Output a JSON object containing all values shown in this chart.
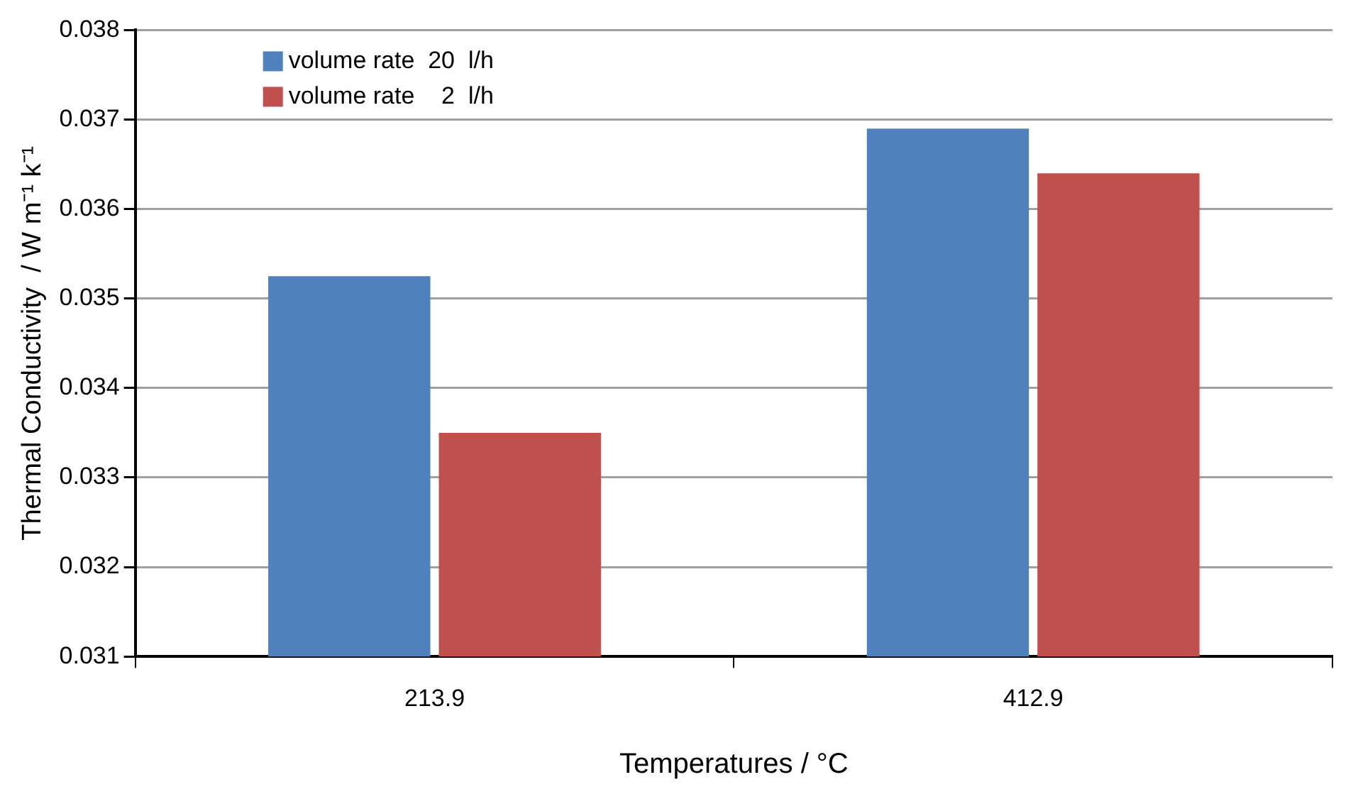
{
  "chart_data": {
    "type": "bar",
    "xlabel": "Temperatures / °C",
    "ylabel": "Thermal Conductivity  / W m⁻¹ k⁻¹",
    "categories": [
      "213.9",
      "412.9"
    ],
    "series": [
      {
        "name": "volume rate  20  l/h",
        "color": "#4f81bd",
        "values": [
          0.03525,
          0.0369
        ]
      },
      {
        "name": "volume rate    2  l/h",
        "color": "#c0504d",
        "values": [
          0.0335,
          0.0364
        ]
      }
    ],
    "ylim": [
      0.031,
      0.038
    ],
    "yticks": [
      0.031,
      0.032,
      0.033,
      0.034,
      0.035,
      0.036,
      0.037,
      0.038
    ],
    "grid": "y",
    "legend": "top left"
  }
}
